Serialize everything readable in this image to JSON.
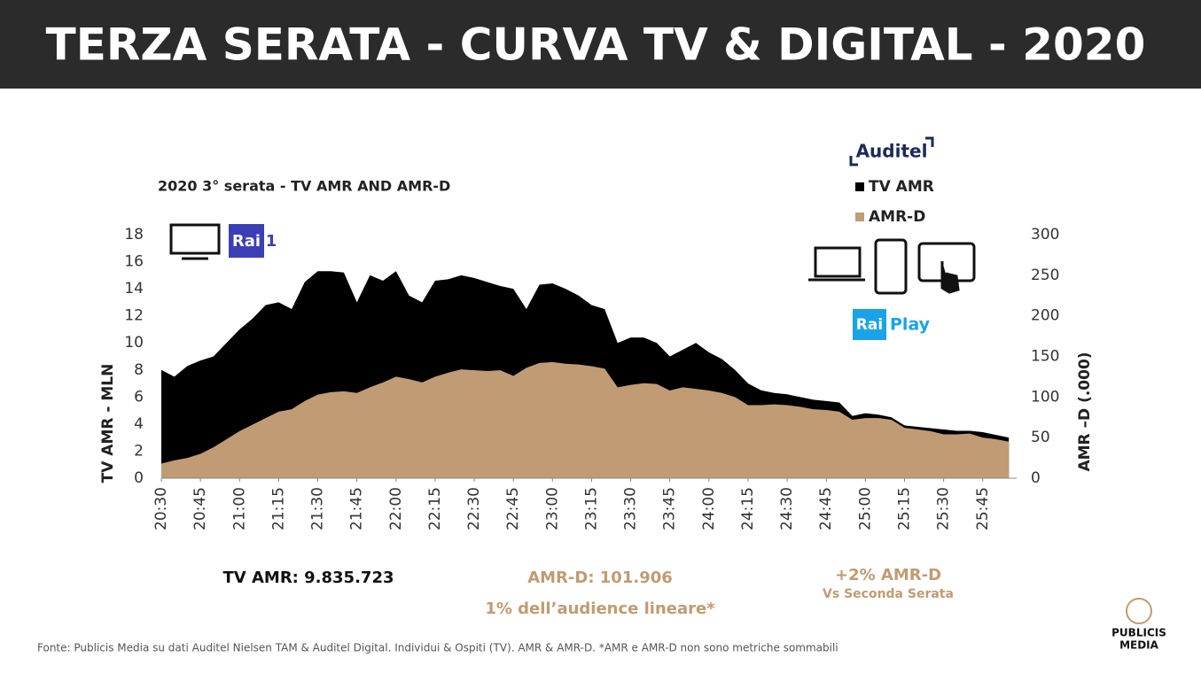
{
  "header": {
    "title": "TERZA SERATA - CURVA TV & DIGITAL - 2020"
  },
  "chart_data": {
    "type": "area",
    "title": "2020 3° serata - TV AMR AND AMR-D",
    "y_label": "TV AMR - MLN",
    "y2_label": "AMR –D (.000)",
    "x": [
      0,
      5,
      10,
      15,
      20,
      25,
      30,
      35,
      40,
      45,
      50,
      55,
      60,
      65,
      70,
      75,
      80,
      85,
      90,
      95,
      100,
      105,
      110,
      115,
      120,
      125,
      130,
      135,
      140,
      145,
      150,
      155,
      160,
      165,
      170,
      175,
      180,
      185,
      190,
      195,
      200,
      205,
      210,
      215,
      220,
      225,
      230,
      235,
      240,
      245,
      250,
      255,
      260,
      265,
      270,
      275,
      280,
      285,
      290,
      295,
      300,
      305,
      310,
      315,
      320,
      325
    ],
    "xlim": [
      0,
      328
    ],
    "xticks": [
      {
        "value": 0,
        "label": "20:30"
      },
      {
        "value": 15,
        "label": "20:45"
      },
      {
        "value": 30,
        "label": "21:00"
      },
      {
        "value": 45,
        "label": "21:15"
      },
      {
        "value": 60,
        "label": "21:30"
      },
      {
        "value": 75,
        "label": "21:45"
      },
      {
        "value": 90,
        "label": "22:00"
      },
      {
        "value": 105,
        "label": "22:15"
      },
      {
        "value": 120,
        "label": "22:30"
      },
      {
        "value": 135,
        "label": "22:45"
      },
      {
        "value": 150,
        "label": "23:00"
      },
      {
        "value": 165,
        "label": "23:15"
      },
      {
        "value": 180,
        "label": "23:30"
      },
      {
        "value": 195,
        "label": "23:45"
      },
      {
        "value": 210,
        "label": "24:00"
      },
      {
        "value": 225,
        "label": "24:15"
      },
      {
        "value": 240,
        "label": "24:30"
      },
      {
        "value": 255,
        "label": "24:45"
      },
      {
        "value": 270,
        "label": "25:00"
      },
      {
        "value": 285,
        "label": "25:15"
      },
      {
        "value": 300,
        "label": "25:30"
      },
      {
        "value": 315,
        "label": "25:45"
      }
    ],
    "ylim": [
      0,
      18
    ],
    "yticks": [
      0,
      2,
      4,
      6,
      8,
      10,
      12,
      14,
      16,
      18
    ],
    "y2lim": [
      0,
      300
    ],
    "y2ticks": [
      0,
      50,
      100,
      150,
      200,
      250,
      300
    ],
    "series": [
      {
        "name": "TV AMR",
        "color": "#000000",
        "values": [
          8.0,
          7.5,
          8.3,
          8.7,
          9.0,
          10.0,
          11.0,
          11.8,
          12.8,
          13.0,
          12.5,
          14.5,
          15.3,
          15.3,
          15.2,
          13.0,
          15.0,
          14.6,
          15.3,
          13.5,
          13.0,
          14.6,
          14.7,
          15.0,
          14.8,
          14.5,
          14.2,
          14.0,
          12.5,
          14.3,
          14.4,
          14.0,
          13.5,
          12.8,
          12.5,
          10.0,
          10.4,
          10.4,
          10.0,
          9.0,
          9.5,
          10.0,
          9.3,
          8.8,
          8.0,
          7.0,
          6.5,
          6.3,
          6.2,
          6.0,
          5.8,
          5.7,
          5.6,
          4.6,
          4.8,
          4.7,
          4.5,
          3.9,
          3.8,
          3.7,
          3.6,
          3.5,
          3.5,
          3.4,
          3.2,
          3.0
        ]
      },
      {
        "name": "AMR-D",
        "color": "#c09b73",
        "axis": "y2",
        "values": [
          18,
          22,
          25,
          30,
          38,
          48,
          58,
          66,
          74,
          82,
          85,
          95,
          103,
          106,
          107,
          105,
          112,
          118,
          125,
          122,
          118,
          125,
          130,
          134,
          133,
          132,
          133,
          126,
          136,
          142,
          143,
          141,
          140,
          138,
          135,
          112,
          115,
          117,
          116,
          108,
          112,
          110,
          108,
          105,
          100,
          90,
          90,
          91,
          90,
          88,
          85,
          84,
          82,
          72,
          74,
          74,
          72,
          62,
          60,
          58,
          54,
          54,
          55,
          50,
          48,
          45
        ]
      }
    ]
  },
  "stats": {
    "tv": "TV AMR: 9.835.723",
    "amrd": "AMR-D: 101.906",
    "amrd_share": "1% dell’audience lineare*",
    "delta": "+2% AMR-D",
    "delta_note": "Vs Seconda Serata"
  },
  "logos": {
    "auditel": "Auditel",
    "rai1_a": "Rai",
    "rai1_b": "1",
    "raiplay_a": "Rai",
    "raiplay_b": "Play",
    "publicis_a": "PUBLICIS",
    "publicis_b": "MEDIA"
  },
  "footer": {
    "source": "Fonte: Publicis Media su dati Auditel Nielsen TAM & Auditel Digital. Individui & Ospiti (TV). AMR & AMR-D. *AMR e AMR-D non sono metriche sommabili"
  }
}
